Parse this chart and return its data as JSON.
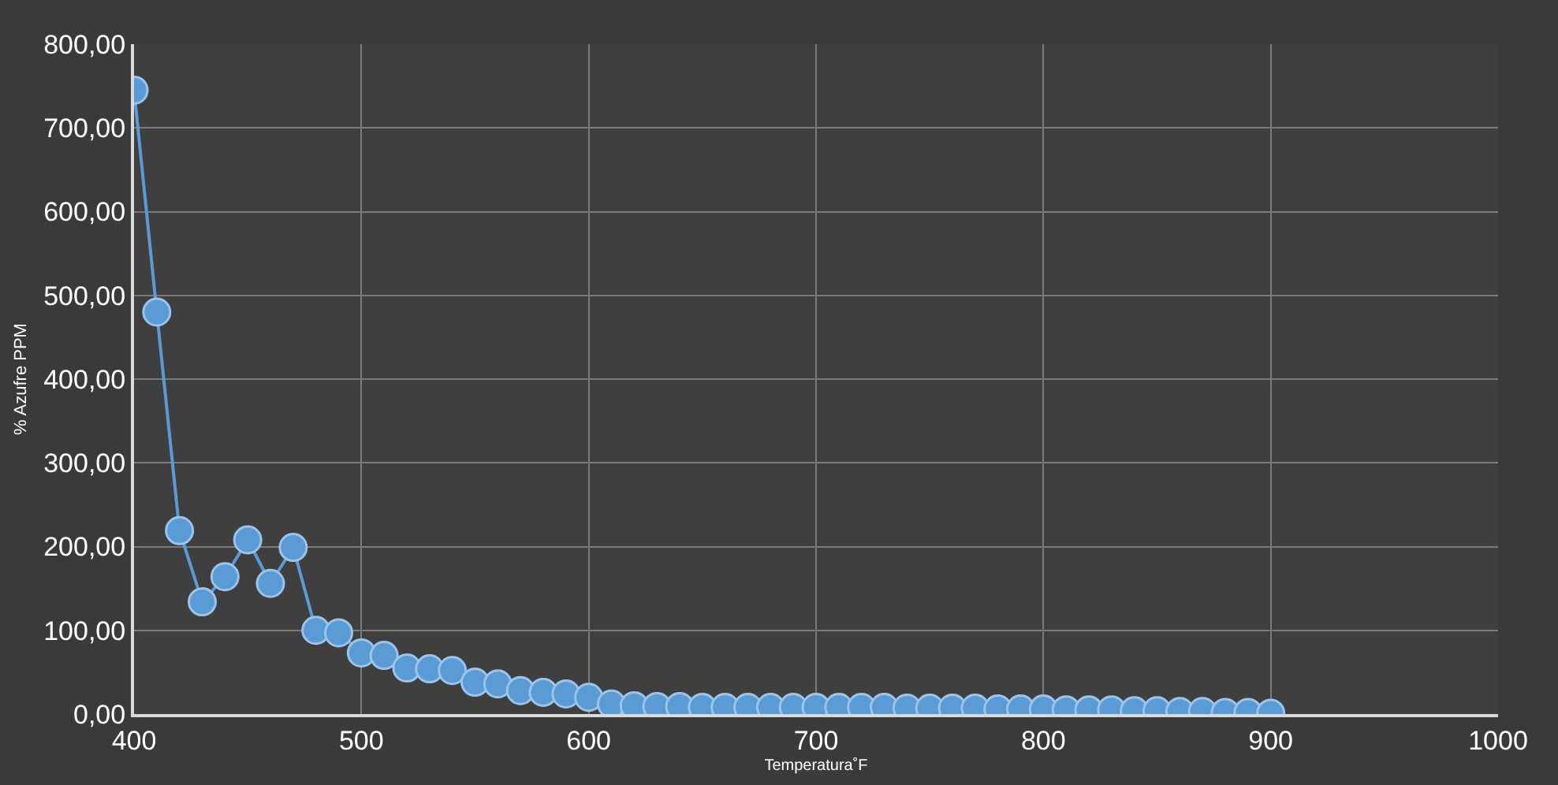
{
  "chart_data": {
    "type": "line",
    "xlabel": "Temperatura˚F",
    "ylabel": "% Azufre PPM",
    "x": [
      400,
      410,
      420,
      430,
      440,
      450,
      460,
      470,
      480,
      490,
      500,
      510,
      520,
      530,
      540,
      550,
      560,
      570,
      580,
      590,
      600,
      610,
      620,
      630,
      640,
      650,
      660,
      670,
      680,
      690,
      700,
      710,
      720,
      730,
      740,
      750,
      760,
      770,
      780,
      790,
      800,
      810,
      820,
      830,
      840,
      850,
      860,
      870,
      880,
      890,
      900
    ],
    "series": [
      {
        "color": "#5b9bd5",
        "values": [
          745,
          480,
          219,
          134,
          164,
          208,
          156,
          199,
          100,
          97,
          73,
          70,
          55,
          54,
          52,
          38,
          36,
          28,
          26,
          24,
          20,
          12,
          10,
          9,
          9,
          8,
          8,
          8,
          8,
          8,
          8,
          8,
          8,
          8,
          7,
          7,
          7,
          7,
          6,
          6,
          6,
          5,
          5,
          5,
          4,
          4,
          3,
          3,
          2,
          2,
          1
        ]
      }
    ],
    "xlim": [
      400,
      1000
    ],
    "xticks": [
      400,
      500,
      600,
      700,
      800,
      900,
      1000
    ],
    "ylim": [
      0,
      800
    ],
    "yticks": [
      {
        "value": 0,
        "label": "0,00"
      },
      {
        "value": 100,
        "label": "100,00"
      },
      {
        "value": 200,
        "label": "200,00"
      },
      {
        "value": 300,
        "label": "300,00"
      },
      {
        "value": 400,
        "label": "400,00"
      },
      {
        "value": 500,
        "label": "500,00"
      },
      {
        "value": 600,
        "label": "600,00"
      },
      {
        "value": 700,
        "label": "700,00"
      },
      {
        "value": 800,
        "label": "800,00"
      }
    ],
    "grid": true,
    "marker": "circle",
    "line_style": "solid"
  }
}
